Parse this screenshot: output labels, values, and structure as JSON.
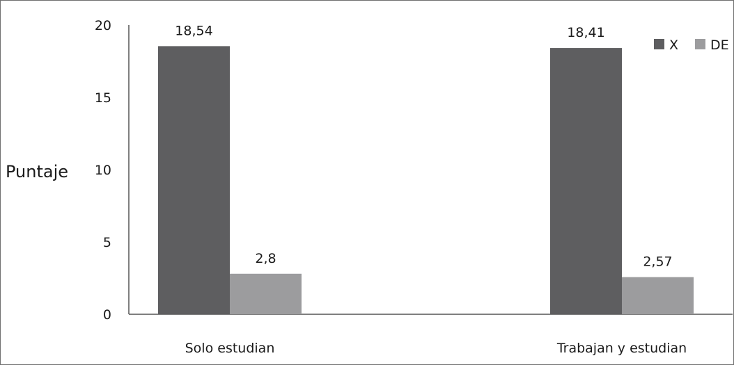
{
  "chart_data": {
    "type": "bar",
    "title": "",
    "xlabel": "",
    "ylabel": "Puntaje",
    "ylim": [
      0,
      20
    ],
    "yticks": [
      0,
      5,
      10,
      15,
      20
    ],
    "categories": [
      "Solo estudian",
      "Trabajan y estudian"
    ],
    "series": [
      {
        "name": "X",
        "values": [
          18.54,
          18.41
        ],
        "labels": [
          "18,54",
          "18,41"
        ],
        "color": "#5e5e60"
      },
      {
        "name": "DE",
        "values": [
          2.8,
          2.57
        ],
        "labels": [
          "2,8",
          "2,57"
        ],
        "color": "#9c9c9e"
      }
    ],
    "legend_position": "top-right",
    "grid": false
  }
}
